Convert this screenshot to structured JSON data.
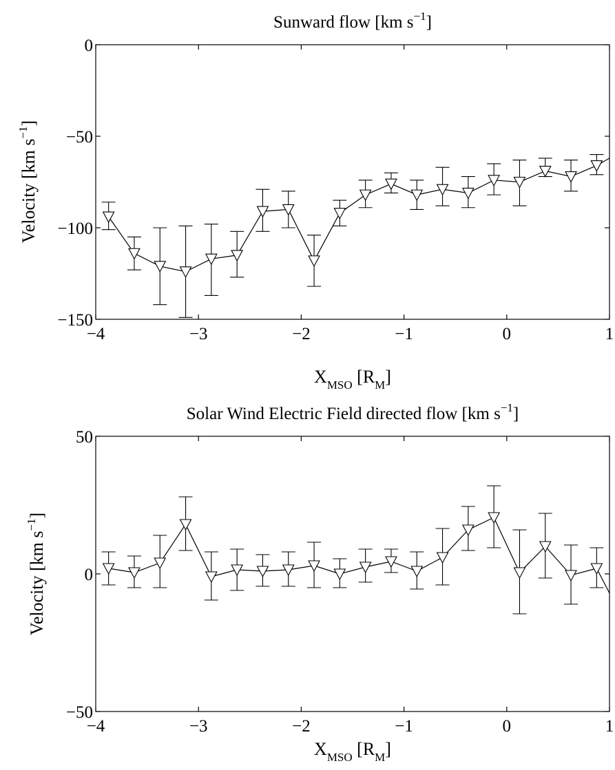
{
  "chart_data": [
    {
      "type": "line",
      "title": "Sunward flow [km s",
      "title_superscript": "−1",
      "title_suffix": "]",
      "xlabel": "X",
      "xlabel_subscript": "MSO",
      "xlabel_suffix": " [R",
      "xlabel_suffix_subscript": "M",
      "xlabel_end": "]",
      "ylabel": "Velocity [km s",
      "ylabel_superscript": "−1",
      "ylabel_suffix": "]",
      "xlim": [
        -4,
        1
      ],
      "ylim": [
        -150,
        0
      ],
      "xticks": [
        "−4",
        "−3",
        "−2",
        "−1",
        "0",
        "1"
      ],
      "yticks": [
        "−150",
        "−100",
        "−50",
        "0"
      ],
      "grid": false,
      "marker": "triangle-down",
      "series": [
        {
          "x": [
            -3.875,
            -3.625,
            -3.375,
            -3.125,
            -2.875,
            -2.625,
            -2.375,
            -2.125,
            -1.875,
            -1.625,
            -1.375,
            -1.125,
            -0.875,
            -0.625,
            -0.375,
            -0.125,
            0.125,
            0.375,
            0.625,
            0.875,
            1.0
          ],
          "y": [
            -94,
            -114,
            -121,
            -124,
            -117,
            -115,
            -91,
            -90,
            -118,
            -92,
            -82,
            -76,
            -82,
            -79,
            -81,
            -74,
            -75,
            -69,
            -72,
            -66,
            -62
          ],
          "err_low": [
            -101,
            -123,
            -142,
            -149,
            -137,
            -127,
            -102,
            -100,
            -132,
            -99,
            -89,
            -81,
            -90,
            -88,
            -89,
            -82,
            -88,
            -72,
            -80,
            -71,
            null
          ],
          "err_high": [
            -86,
            -105,
            -100,
            -99,
            -98,
            -102,
            -79,
            -80,
            -104,
            -85,
            -74,
            -70,
            -74,
            -67,
            -72,
            -65,
            -63,
            -62,
            -63,
            -60,
            null
          ]
        }
      ]
    },
    {
      "type": "line",
      "title": "Solar Wind Electric Field directed flow [km s",
      "title_superscript": "−1",
      "title_suffix": "]",
      "xlabel": "X",
      "xlabel_subscript": "MSO",
      "xlabel_suffix": " [R",
      "xlabel_suffix_subscript": "M",
      "xlabel_end": "]",
      "ylabel": "Velocity [km s",
      "ylabel_superscript": "−1",
      "ylabel_suffix": "]",
      "xlim": [
        -4,
        1
      ],
      "ylim": [
        -50,
        50
      ],
      "xticks": [
        "−4",
        "−3",
        "−2",
        "−1",
        "0",
        "1"
      ],
      "yticks": [
        "−50",
        "0",
        "50"
      ],
      "grid": false,
      "marker": "triangle-down",
      "series": [
        {
          "x": [
            -3.875,
            -3.625,
            -3.375,
            -3.125,
            -2.875,
            -2.625,
            -2.375,
            -2.125,
            -1.875,
            -1.625,
            -1.375,
            -1.125,
            -0.875,
            -0.625,
            -0.375,
            -0.125,
            0.125,
            0.375,
            0.625,
            0.875,
            1.0
          ],
          "y": [
            2,
            0.5,
            4,
            18,
            -1,
            1.5,
            1,
            1.5,
            3,
            0,
            2.5,
            4.5,
            1,
            6,
            16,
            20.5,
            0.5,
            10,
            -0.5,
            2,
            -7
          ],
          "err_low": [
            -4,
            -5,
            -5,
            8.5,
            -9.5,
            -6,
            -4.5,
            -4.5,
            -5,
            -5,
            -3,
            0.5,
            -5.5,
            -4,
            8.5,
            9.5,
            -14.5,
            -1.5,
            -11,
            -5,
            null
          ],
          "err_high": [
            8,
            6.5,
            14,
            28,
            8,
            9,
            7,
            8,
            11.5,
            5.5,
            9,
            9,
            8,
            16.5,
            24.5,
            32,
            16,
            22,
            10.5,
            9.5,
            null
          ]
        }
      ]
    }
  ]
}
